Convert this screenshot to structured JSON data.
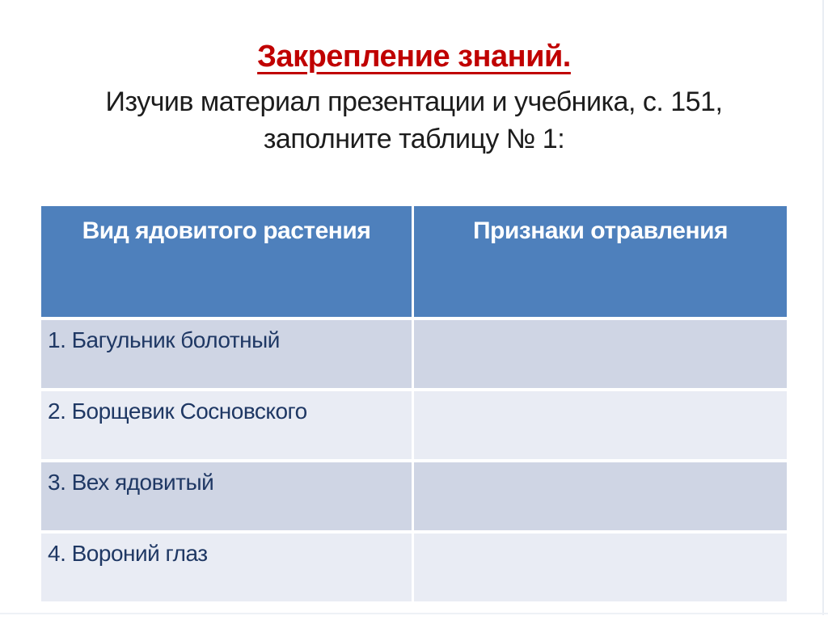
{
  "slide": {
    "title": "Закрепление знаний.",
    "subtitle_lines": {
      "line1": "Изучив материал презентации и учебника, с. 151,",
      "line2": "заполните таблицу № 1:"
    },
    "table": {
      "headers": {
        "col1": "Вид ядовитого растения",
        "col2": "Признаки отравления"
      },
      "rows": [
        {
          "plant": "1. Багульник болотный",
          "symptoms": ""
        },
        {
          "plant": "2. Борщевик Сосновского",
          "symptoms": ""
        },
        {
          "plant": "3. Вех ядовитый",
          "symptoms": ""
        },
        {
          "plant": "4. Вороний глаз",
          "symptoms": ""
        }
      ]
    },
    "colors": {
      "title_red": "#c00000",
      "header_blue": "#4e80bc",
      "band_dark": "#cfd5e4",
      "band_light": "#e9ecf4",
      "cell_text_navy": "#1f3864",
      "subtitle_text": "#1c1c1c"
    }
  }
}
